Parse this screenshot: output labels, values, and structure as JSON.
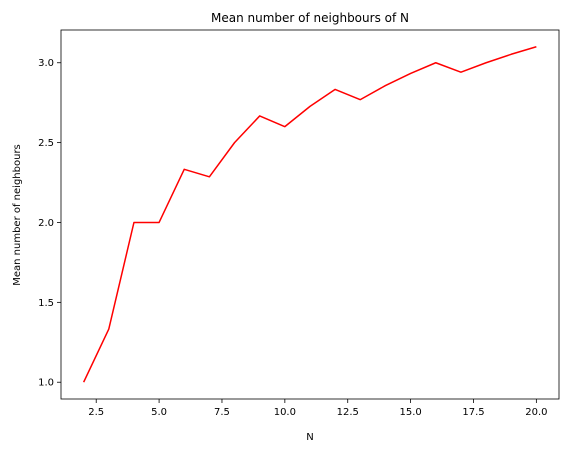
{
  "chart_data": {
    "type": "line",
    "title": "Mean number of neighbours of N",
    "xlabel": "N",
    "ylabel": "Mean number of neighbours",
    "xlim": [
      1.1,
      20.9
    ],
    "ylim": [
      0.895,
      3.205
    ],
    "xticks": [
      2.5,
      5.0,
      7.5,
      10.0,
      12.5,
      15.0,
      17.5,
      20.0
    ],
    "xtick_labels": [
      "2.5",
      "5.0",
      "7.5",
      "10.0",
      "12.5",
      "15.0",
      "17.5",
      "20.0"
    ],
    "yticks": [
      1.0,
      1.5,
      2.0,
      2.5,
      3.0
    ],
    "ytick_labels": [
      "1.0",
      "1.5",
      "2.0",
      "2.5",
      "3.0"
    ],
    "grid": false,
    "series": [
      {
        "color": "#ff0000",
        "x": [
          2,
          3,
          4,
          5,
          6,
          7,
          8,
          9,
          10,
          11,
          12,
          13,
          14,
          15,
          16,
          17,
          18,
          19,
          20
        ],
        "y": [
          1.0,
          1.333,
          2.0,
          2.0,
          2.333,
          2.286,
          2.5,
          2.667,
          2.6,
          2.727,
          2.833,
          2.769,
          2.857,
          2.933,
          3.0,
          2.941,
          3.0,
          3.053,
          3.1
        ]
      }
    ]
  }
}
